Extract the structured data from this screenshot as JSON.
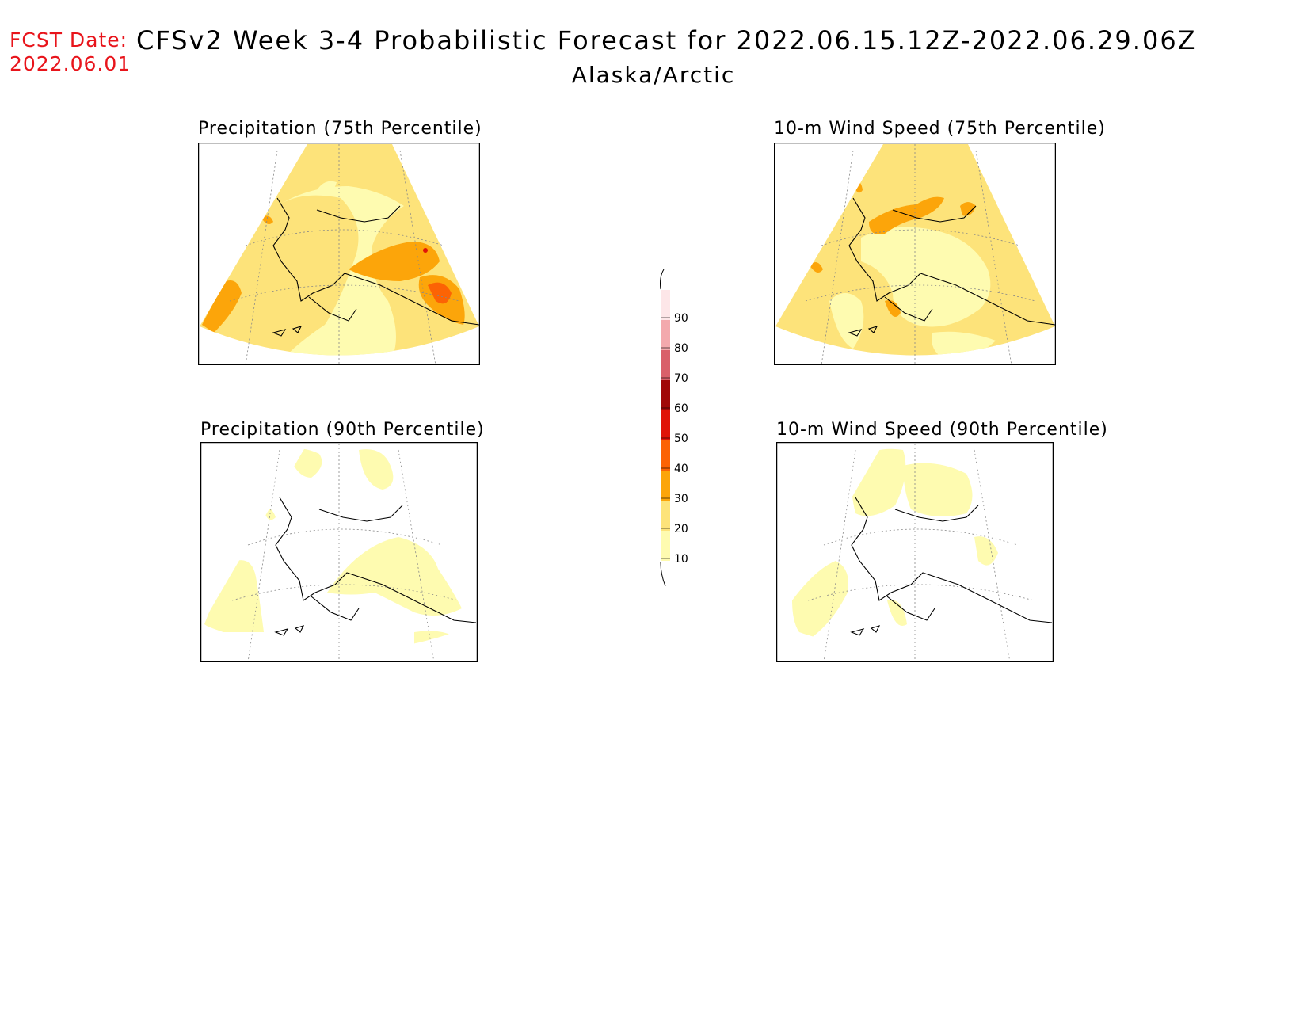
{
  "header": {
    "fcst_label": "FCST Date:",
    "fcst_date": "2022.06.01",
    "title": "CFSv2 Week 3-4 Probabilistic Forecast for 2022.06.15.12Z-2022.06.29.06Z",
    "region": "Alaska/Arctic"
  },
  "panels": [
    {
      "title": "Precipitation (75th Percentile)",
      "level": "high"
    },
    {
      "title": "10-m Wind Speed (75th Percentile)",
      "level": "high"
    },
    {
      "title": "Precipitation (90th Percentile)",
      "level": "low"
    },
    {
      "title": "10-m Wind Speed (90th Percentile)",
      "level": "low"
    }
  ],
  "colorbar": {
    "levels": [
      "10",
      "20",
      "30",
      "40",
      "50",
      "60",
      "70",
      "80",
      "90"
    ],
    "colors": [
      "#fefbb0",
      "#fde37a",
      "#fca50a",
      "#fc6304",
      "#e01408",
      "#a00808",
      "#d9606a",
      "#f3a9ad",
      "#fde6e8"
    ]
  }
}
